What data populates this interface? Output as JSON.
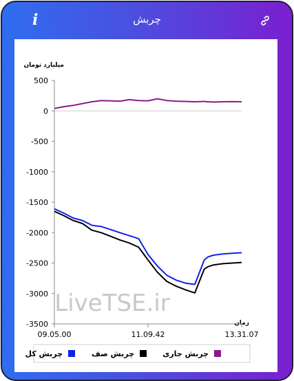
{
  "header": {
    "title": "چربش",
    "info_icon": "i",
    "link_icon": "link-icon"
  },
  "chart_data": {
    "type": "line",
    "ylabel": "میلیارد تومان",
    "xlabel": "زمان",
    "watermark": "LiveTSE.ir",
    "ylim": [
      -3500,
      500
    ],
    "yticks": [
      "500",
      "0",
      "-500",
      "-1000",
      "-1500",
      "-2000",
      "-2500",
      "-3000",
      "-3500"
    ],
    "xticks": [
      "09.05.00",
      "11.09.42",
      "13.31.07"
    ],
    "x": [
      0,
      0.05,
      0.1,
      0.15,
      0.2,
      0.25,
      0.3,
      0.35,
      0.4,
      0.45,
      0.5,
      0.55,
      0.6,
      0.65,
      0.7,
      0.75,
      0.8,
      0.82,
      0.85,
      0.9,
      0.95,
      1.0
    ],
    "series": [
      {
        "name": "چربش کل",
        "color": "#1020e8",
        "values": [
          -1610,
          -1680,
          -1760,
          -1800,
          -1880,
          -1900,
          -1950,
          -2000,
          -2050,
          -2100,
          -2360,
          -2550,
          -2700,
          -2780,
          -2830,
          -2850,
          -2450,
          -2400,
          -2370,
          -2350,
          -2340,
          -2330
        ]
      },
      {
        "name": "چربش صف",
        "color": "#000000",
        "values": [
          -1650,
          -1720,
          -1800,
          -1850,
          -1960,
          -2000,
          -2060,
          -2120,
          -2170,
          -2240,
          -2450,
          -2650,
          -2800,
          -2880,
          -2940,
          -2990,
          -2600,
          -2560,
          -2530,
          -2510,
          -2500,
          -2490
        ]
      },
      {
        "name": "چربش جاری",
        "color": "#8a1a8a",
        "values": [
          40,
          70,
          90,
          120,
          150,
          170,
          165,
          160,
          185,
          170,
          165,
          200,
          170,
          160,
          155,
          150,
          155,
          150,
          145,
          150,
          152,
          150
        ]
      }
    ],
    "grid": false,
    "legend_position": "bottom"
  }
}
